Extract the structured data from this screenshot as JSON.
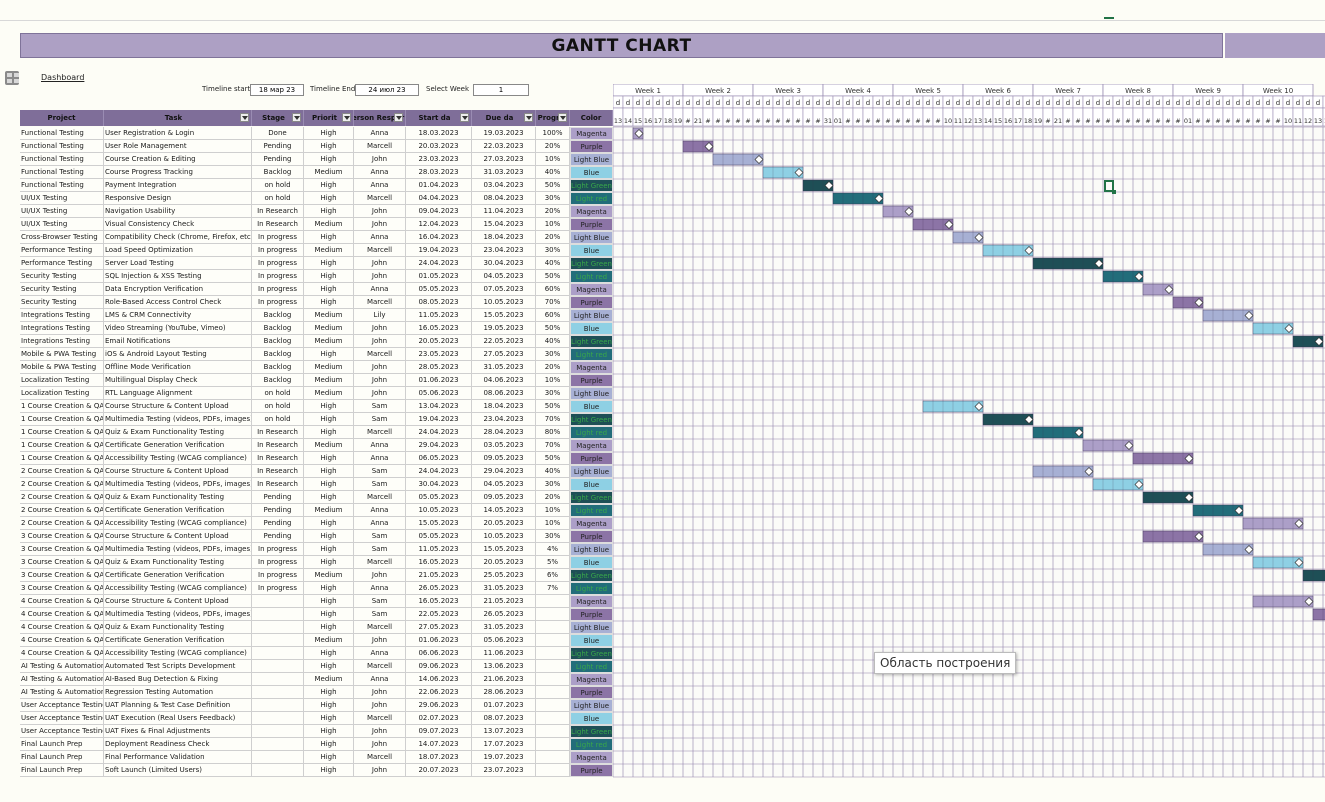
{
  "title": "GANTT CHART",
  "dashboard_link": "Dashboard",
  "controls": {
    "timeline_start_label": "Timeline start",
    "timeline_start_value": "18 мар 23",
    "timeline_end_label": "Timeline End",
    "timeline_end_value": "24 июл 23",
    "select_week_label": "Select Week",
    "select_week_value": "1"
  },
  "headers": [
    "Project",
    "Task",
    "Stage",
    "Priorit",
    "Person Respor",
    "Start da",
    "Due da",
    "Progr",
    "Color"
  ],
  "weeks": [
    "Week 1",
    "Week 2",
    "Week 3",
    "Week 4",
    "Week 5",
    "Week 6",
    "Week 7",
    "Week 8",
    "Week 9",
    "Week 10"
  ],
  "day_letter": "d",
  "day_numbers": [
    "13",
    "14",
    "15",
    "16",
    "17",
    "18",
    "19",
    "#",
    "21",
    "#",
    "#",
    "#",
    "#",
    "#",
    "#",
    "#",
    "#",
    "#",
    "#",
    "#",
    "#",
    "31",
    "01",
    "#",
    "#",
    "#",
    "#",
    "#",
    "#",
    "#",
    "#",
    "#",
    "#",
    "10",
    "11",
    "12",
    "13",
    "14",
    "15",
    "16",
    "17",
    "18",
    "19",
    "#",
    "21",
    "#",
    "#",
    "#",
    "#",
    "#",
    "#",
    "#",
    "#",
    "#",
    "#",
    "#",
    "#",
    "01",
    "#",
    "#",
    "#",
    "#",
    "#",
    "#",
    "#",
    "#",
    "#",
    "10",
    "11",
    "12",
    "13",
    "14",
    "15",
    "16",
    "17",
    "18",
    "19",
    "#",
    "21",
    "#",
    "#"
  ],
  "tooltip": "Область построения",
  "colors": {
    "Magenta": "#ac9fc8",
    "Purple": "#8c74a6",
    "Light Blue": "#a7b0d4",
    "Blue": "#8ed0e4",
    "Light Green": "#1e4f56",
    "Light red": "#226d7a"
  },
  "tasks": [
    {
      "project": "Functional Testing",
      "task": "User Registration & Login",
      "stage": "Done",
      "priority": "High",
      "person": "Anna",
      "start": "18.03.2023",
      "due": "19.03.2023",
      "progress": "100%",
      "color": "Magenta",
      "bar": [
        2,
        3
      ]
    },
    {
      "project": "Functional Testing",
      "task": "User Role Management",
      "stage": "Pending",
      "priority": "High",
      "person": "Marcell",
      "start": "20.03.2023",
      "due": "22.03.2023",
      "progress": "20%",
      "color": "Purple",
      "bar": [
        7,
        10
      ]
    },
    {
      "project": "Functional Testing",
      "task": "Course Creation & Editing",
      "stage": "Pending",
      "priority": "High",
      "person": "John",
      "start": "23.03.2023",
      "due": "27.03.2023",
      "progress": "10%",
      "color": "Light Blue",
      "bar": [
        10,
        15
      ]
    },
    {
      "project": "Functional Testing",
      "task": "Course Progress Tracking",
      "stage": "Backlog",
      "priority": "Medium",
      "person": "Anna",
      "start": "28.03.2023",
      "due": "31.03.2023",
      "progress": "40%",
      "color": "Blue",
      "bar": [
        15,
        19
      ]
    },
    {
      "project": "Functional Testing",
      "task": "Payment Integration",
      "stage": "on hold",
      "priority": "High",
      "person": "Anna",
      "start": "01.04.2023",
      "due": "03.04.2023",
      "progress": "50%",
      "color": "Light Green",
      "bar": [
        19,
        22
      ]
    },
    {
      "project": "UI/UX Testing",
      "task": "Responsive Design",
      "stage": "on hold",
      "priority": "High",
      "person": "Marcell",
      "start": "04.04.2023",
      "due": "08.04.2023",
      "progress": "30%",
      "color": "Light red",
      "bar": [
        22,
        27
      ]
    },
    {
      "project": "UI/UX Testing",
      "task": "Navigation Usability",
      "stage": "In Research",
      "priority": "High",
      "person": "John",
      "start": "09.04.2023",
      "due": "11.04.2023",
      "progress": "20%",
      "color": "Magenta",
      "bar": [
        27,
        30
      ]
    },
    {
      "project": "UI/UX Testing",
      "task": "Visual Consistency Check",
      "stage": "In Research",
      "priority": "Medium",
      "person": "John",
      "start": "12.04.2023",
      "due": "15.04.2023",
      "progress": "10%",
      "color": "Purple",
      "bar": [
        30,
        34
      ]
    },
    {
      "project": "Cross-Browser Testing",
      "task": "Compatibility Check (Chrome, Firefox, etc.)",
      "stage": "In progress",
      "priority": "High",
      "person": "Anna",
      "start": "16.04.2023",
      "due": "18.04.2023",
      "progress": "20%",
      "color": "Light Blue",
      "bar": [
        34,
        37
      ]
    },
    {
      "project": "Performance Testing",
      "task": "Load Speed Optimization",
      "stage": "In progress",
      "priority": "Medium",
      "person": "Marcell",
      "start": "19.04.2023",
      "due": "23.04.2023",
      "progress": "30%",
      "color": "Blue",
      "bar": [
        37,
        42
      ]
    },
    {
      "project": "Performance Testing",
      "task": "Server Load Testing",
      "stage": "In progress",
      "priority": "High",
      "person": "John",
      "start": "24.04.2023",
      "due": "30.04.2023",
      "progress": "40%",
      "color": "Light Green",
      "bar": [
        42,
        49
      ]
    },
    {
      "project": "Security Testing",
      "task": "SQL Injection & XSS Testing",
      "stage": "In progress",
      "priority": "High",
      "person": "John",
      "start": "01.05.2023",
      "due": "04.05.2023",
      "progress": "50%",
      "color": "Light red",
      "bar": [
        49,
        53
      ]
    },
    {
      "project": "Security Testing",
      "task": "Data Encryption Verification",
      "stage": "In progress",
      "priority": "High",
      "person": "Anna",
      "start": "05.05.2023",
      "due": "07.05.2023",
      "progress": "60%",
      "color": "Magenta",
      "bar": [
        53,
        56
      ]
    },
    {
      "project": "Security Testing",
      "task": "Role-Based Access Control Check",
      "stage": "In progress",
      "priority": "High",
      "person": "Marcell",
      "start": "08.05.2023",
      "due": "10.05.2023",
      "progress": "70%",
      "color": "Purple",
      "bar": [
        56,
        59
      ]
    },
    {
      "project": "Integrations Testing",
      "task": "LMS & CRM Connectivity",
      "stage": "Backlog",
      "priority": "Medium",
      "person": "Lily",
      "start": "11.05.2023",
      "due": "15.05.2023",
      "progress": "60%",
      "color": "Light Blue",
      "bar": [
        59,
        64
      ]
    },
    {
      "project": "Integrations Testing",
      "task": "Video Streaming (YouTube, Vimeo)",
      "stage": "Backlog",
      "priority": "Medium",
      "person": "John",
      "start": "16.05.2023",
      "due": "19.05.2023",
      "progress": "50%",
      "color": "Blue",
      "bar": [
        64,
        68
      ]
    },
    {
      "project": "Integrations Testing",
      "task": "Email Notifications",
      "stage": "Backlog",
      "priority": "Medium",
      "person": "John",
      "start": "20.05.2023",
      "due": "22.05.2023",
      "progress": "40%",
      "color": "Light Green",
      "bar": [
        68,
        71
      ]
    },
    {
      "project": "Mobile & PWA Testing",
      "task": "iOS & Android Layout Testing",
      "stage": "Backlog",
      "priority": "High",
      "person": "Marcell",
      "start": "23.05.2023",
      "due": "27.05.2023",
      "progress": "30%",
      "color": "Light red",
      "bar": null
    },
    {
      "project": "Mobile & PWA Testing",
      "task": "Offline Mode Verification",
      "stage": "Backlog",
      "priority": "Medium",
      "person": "John",
      "start": "28.05.2023",
      "due": "31.05.2023",
      "progress": "20%",
      "color": "Magenta",
      "bar": null
    },
    {
      "project": "Localization Testing",
      "task": "Multilingual Display Check",
      "stage": "Backlog",
      "priority": "Medium",
      "person": "John",
      "start": "01.06.2023",
      "due": "04.06.2023",
      "progress": "10%",
      "color": "Purple",
      "bar": null
    },
    {
      "project": "Localization Testing",
      "task": "RTL Language Alignment",
      "stage": "on hold",
      "priority": "Medium",
      "person": "John",
      "start": "05.06.2023",
      "due": "08.06.2023",
      "progress": "30%",
      "color": "Light Blue",
      "bar": null
    },
    {
      "project": "1 Course Creation & QA",
      "task": "Course Structure & Content Upload",
      "stage": "on hold",
      "priority": "High",
      "person": "Sam",
      "start": "13.04.2023",
      "due": "18.04.2023",
      "progress": "50%",
      "color": "Blue",
      "bar": [
        31,
        37
      ]
    },
    {
      "project": "1 Course Creation & QA",
      "task": "Multimedia Testing (videos, PDFs, images)",
      "stage": "on hold",
      "priority": "High",
      "person": "Sam",
      "start": "19.04.2023",
      "due": "23.04.2023",
      "progress": "70%",
      "color": "Light Green",
      "bar": [
        37,
        42
      ]
    },
    {
      "project": "1 Course Creation & QA",
      "task": "Quiz & Exam Functionality Testing",
      "stage": "In Research",
      "priority": "High",
      "person": "Marcell",
      "start": "24.04.2023",
      "due": "28.04.2023",
      "progress": "80%",
      "color": "Light red",
      "bar": [
        42,
        47
      ]
    },
    {
      "project": "1 Course Creation & QA",
      "task": "Certificate Generation Verification",
      "stage": "In Research",
      "priority": "Medium",
      "person": "Anna",
      "start": "29.04.2023",
      "due": "03.05.2023",
      "progress": "70%",
      "color": "Magenta",
      "bar": [
        47,
        52
      ]
    },
    {
      "project": "1 Course Creation & QA",
      "task": "Accessibility Testing (WCAG compliance)",
      "stage": "In Research",
      "priority": "High",
      "person": "Anna",
      "start": "06.05.2023",
      "due": "09.05.2023",
      "progress": "50%",
      "color": "Purple",
      "bar": [
        52,
        58
      ]
    },
    {
      "project": "2 Course Creation & QA",
      "task": "Course Structure & Content Upload",
      "stage": "In Research",
      "priority": "High",
      "person": "Sam",
      "start": "24.04.2023",
      "due": "29.04.2023",
      "progress": "40%",
      "color": "Light Blue",
      "bar": [
        42,
        48
      ]
    },
    {
      "project": "2 Course Creation & QA",
      "task": "Multimedia Testing (videos, PDFs, images)",
      "stage": "In Research",
      "priority": "High",
      "person": "Sam",
      "start": "30.04.2023",
      "due": "04.05.2023",
      "progress": "30%",
      "color": "Blue",
      "bar": [
        48,
        53
      ]
    },
    {
      "project": "2 Course Creation & QA",
      "task": "Quiz & Exam Functionality Testing",
      "stage": "Pending",
      "priority": "High",
      "person": "Marcell",
      "start": "05.05.2023",
      "due": "09.05.2023",
      "progress": "20%",
      "color": "Light Green",
      "bar": [
        53,
        58
      ]
    },
    {
      "project": "2 Course Creation & QA",
      "task": "Certificate Generation Verification",
      "stage": "Pending",
      "priority": "Medium",
      "person": "Anna",
      "start": "10.05.2023",
      "due": "14.05.2023",
      "progress": "10%",
      "color": "Light red",
      "bar": [
        58,
        63
      ]
    },
    {
      "project": "2 Course Creation & QA",
      "task": "Accessibility Testing (WCAG compliance)",
      "stage": "Pending",
      "priority": "High",
      "person": "Anna",
      "start": "15.05.2023",
      "due": "20.05.2023",
      "progress": "10%",
      "color": "Magenta",
      "bar": [
        63,
        69
      ]
    },
    {
      "project": "3 Course Creation & QA",
      "task": "Course Structure & Content Upload",
      "stage": "Pending",
      "priority": "High",
      "person": "Sam",
      "start": "05.05.2023",
      "due": "10.05.2023",
      "progress": "30%",
      "color": "Purple",
      "bar": [
        53,
        59
      ]
    },
    {
      "project": "3 Course Creation & QA",
      "task": "Multimedia Testing (videos, PDFs, images)",
      "stage": "In progress",
      "priority": "High",
      "person": "Sam",
      "start": "11.05.2023",
      "due": "15.05.2023",
      "progress": "4%",
      "color": "Light Blue",
      "bar": [
        59,
        64
      ]
    },
    {
      "project": "3 Course Creation & QA",
      "task": "Quiz & Exam Functionality Testing",
      "stage": "In progress",
      "priority": "High",
      "person": "Marcell",
      "start": "16.05.2023",
      "due": "20.05.2023",
      "progress": "5%",
      "color": "Blue",
      "bar": [
        64,
        69
      ]
    },
    {
      "project": "3 Course Creation & QA",
      "task": "Certificate Generation Verification",
      "stage": "In progress",
      "priority": "Medium",
      "person": "John",
      "start": "21.05.2023",
      "due": "25.05.2023",
      "progress": "6%",
      "color": "Light Green",
      "bar": [
        69,
        75
      ]
    },
    {
      "project": "3 Course Creation & QA",
      "task": "Accessibility Testing (WCAG compliance)",
      "stage": "In progress",
      "priority": "High",
      "person": "Anna",
      "start": "26.05.2023",
      "due": "31.05.2023",
      "progress": "7%",
      "color": "Light red",
      "bar": null
    },
    {
      "project": "4 Course Creation & QA",
      "task": "Course Structure & Content Upload",
      "stage": "",
      "priority": "High",
      "person": "Sam",
      "start": "16.05.2023",
      "due": "21.05.2023",
      "progress": "",
      "color": "Magenta",
      "bar": [
        64,
        70
      ]
    },
    {
      "project": "4 Course Creation & QA",
      "task": "Multimedia Testing (videos, PDFs, images)",
      "stage": "",
      "priority": "High",
      "person": "Sam",
      "start": "22.05.2023",
      "due": "26.05.2023",
      "progress": "",
      "color": "Purple",
      "bar": [
        70,
        75
      ]
    },
    {
      "project": "4 Course Creation & QA",
      "task": "Quiz & Exam Functionality Testing",
      "stage": "",
      "priority": "High",
      "person": "Marcell",
      "start": "27.05.2023",
      "due": "31.05.2023",
      "progress": "",
      "color": "Light Blue",
      "bar": null
    },
    {
      "project": "4 Course Creation & QA",
      "task": "Certificate Generation Verification",
      "stage": "",
      "priority": "Medium",
      "person": "John",
      "start": "01.06.2023",
      "due": "05.06.2023",
      "progress": "",
      "color": "Blue",
      "bar": null
    },
    {
      "project": "4 Course Creation & QA",
      "task": "Accessibility Testing (WCAG compliance)",
      "stage": "",
      "priority": "High",
      "person": "Anna",
      "start": "06.06.2023",
      "due": "11.06.2023",
      "progress": "",
      "color": "Light Green",
      "bar": null
    },
    {
      "project": "AI Testing & Automation",
      "task": "Automated Test Scripts Development",
      "stage": "",
      "priority": "High",
      "person": "Marcell",
      "start": "09.06.2023",
      "due": "13.06.2023",
      "progress": "",
      "color": "Light red",
      "bar": null
    },
    {
      "project": "AI Testing & Automation",
      "task": "AI-Based Bug Detection & Fixing",
      "stage": "",
      "priority": "Medium",
      "person": "Anna",
      "start": "14.06.2023",
      "due": "21.06.2023",
      "progress": "",
      "color": "Magenta",
      "bar": null
    },
    {
      "project": "AI Testing & Automation",
      "task": "Regression Testing Automation",
      "stage": "",
      "priority": "High",
      "person": "John",
      "start": "22.06.2023",
      "due": "28.06.2023",
      "progress": "",
      "color": "Purple",
      "bar": null
    },
    {
      "project": "User Acceptance Testing",
      "task": "UAT Planning & Test Case Definition",
      "stage": "",
      "priority": "High",
      "person": "John",
      "start": "29.06.2023",
      "due": "01.07.2023",
      "progress": "",
      "color": "Light Blue",
      "bar": null
    },
    {
      "project": "User Acceptance Testing",
      "task": "UAT Execution (Real Users Feedback)",
      "stage": "",
      "priority": "High",
      "person": "Marcell",
      "start": "02.07.2023",
      "due": "08.07.2023",
      "progress": "",
      "color": "Blue",
      "bar": null
    },
    {
      "project": "User Acceptance Testing",
      "task": "UAT Fixes & Final Adjustments",
      "stage": "",
      "priority": "High",
      "person": "John",
      "start": "09.07.2023",
      "due": "13.07.2023",
      "progress": "",
      "color": "Light Green",
      "bar": null
    },
    {
      "project": "Final Launch Prep",
      "task": "Deployment Readiness Check",
      "stage": "",
      "priority": "High",
      "person": "John",
      "start": "14.07.2023",
      "due": "17.07.2023",
      "progress": "",
      "color": "Light red",
      "bar": null
    },
    {
      "project": "Final Launch Prep",
      "task": "Final Performance Validation",
      "stage": "",
      "priority": "High",
      "person": "Marcell",
      "start": "18.07.2023",
      "due": "19.07.2023",
      "progress": "",
      "color": "Magenta",
      "bar": null
    },
    {
      "project": "Final Launch Prep",
      "task": "Soft Launch (Limited Users)",
      "stage": "",
      "priority": "High",
      "person": "John",
      "start": "20.07.2023",
      "due": "23.07.2023",
      "progress": "",
      "color": "Purple",
      "bar": null
    }
  ]
}
